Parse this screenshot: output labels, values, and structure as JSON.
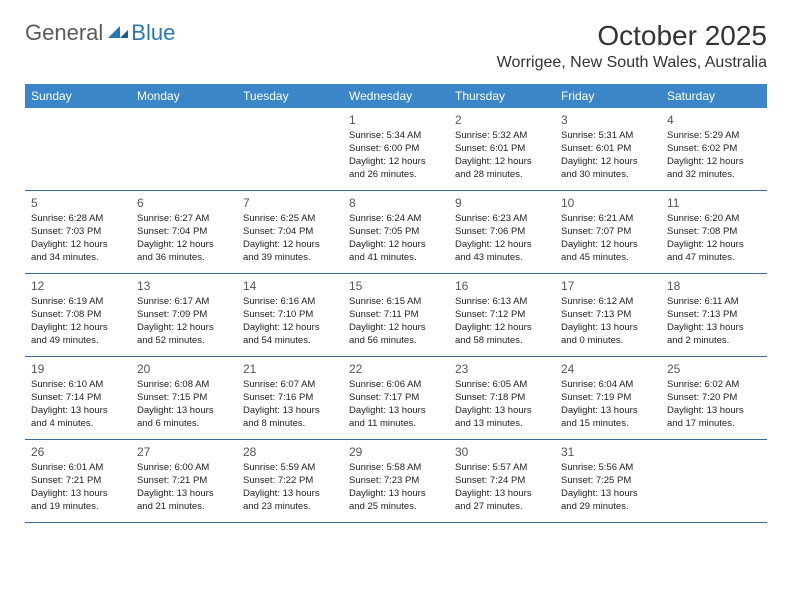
{
  "logo": {
    "text_general": "General",
    "text_blue": "Blue",
    "icon_color": "#2878b8"
  },
  "title": "October 2025",
  "location": "Worrigee, New South Wales, Australia",
  "header_bg": "#3a86c8",
  "header_text_color": "#ffffff",
  "divider_color": "#3a6a95",
  "day_names": [
    "Sunday",
    "Monday",
    "Tuesday",
    "Wednesday",
    "Thursday",
    "Friday",
    "Saturday"
  ],
  "weeks": [
    [
      {
        "num": "",
        "sunrise": "",
        "sunset": "",
        "daylight1": "",
        "daylight2": ""
      },
      {
        "num": "",
        "sunrise": "",
        "sunset": "",
        "daylight1": "",
        "daylight2": ""
      },
      {
        "num": "",
        "sunrise": "",
        "sunset": "",
        "daylight1": "",
        "daylight2": ""
      },
      {
        "num": "1",
        "sunrise": "Sunrise: 5:34 AM",
        "sunset": "Sunset: 6:00 PM",
        "daylight1": "Daylight: 12 hours",
        "daylight2": "and 26 minutes."
      },
      {
        "num": "2",
        "sunrise": "Sunrise: 5:32 AM",
        "sunset": "Sunset: 6:01 PM",
        "daylight1": "Daylight: 12 hours",
        "daylight2": "and 28 minutes."
      },
      {
        "num": "3",
        "sunrise": "Sunrise: 5:31 AM",
        "sunset": "Sunset: 6:01 PM",
        "daylight1": "Daylight: 12 hours",
        "daylight2": "and 30 minutes."
      },
      {
        "num": "4",
        "sunrise": "Sunrise: 5:29 AM",
        "sunset": "Sunset: 6:02 PM",
        "daylight1": "Daylight: 12 hours",
        "daylight2": "and 32 minutes."
      }
    ],
    [
      {
        "num": "5",
        "sunrise": "Sunrise: 6:28 AM",
        "sunset": "Sunset: 7:03 PM",
        "daylight1": "Daylight: 12 hours",
        "daylight2": "and 34 minutes."
      },
      {
        "num": "6",
        "sunrise": "Sunrise: 6:27 AM",
        "sunset": "Sunset: 7:04 PM",
        "daylight1": "Daylight: 12 hours",
        "daylight2": "and 36 minutes."
      },
      {
        "num": "7",
        "sunrise": "Sunrise: 6:25 AM",
        "sunset": "Sunset: 7:04 PM",
        "daylight1": "Daylight: 12 hours",
        "daylight2": "and 39 minutes."
      },
      {
        "num": "8",
        "sunrise": "Sunrise: 6:24 AM",
        "sunset": "Sunset: 7:05 PM",
        "daylight1": "Daylight: 12 hours",
        "daylight2": "and 41 minutes."
      },
      {
        "num": "9",
        "sunrise": "Sunrise: 6:23 AM",
        "sunset": "Sunset: 7:06 PM",
        "daylight1": "Daylight: 12 hours",
        "daylight2": "and 43 minutes."
      },
      {
        "num": "10",
        "sunrise": "Sunrise: 6:21 AM",
        "sunset": "Sunset: 7:07 PM",
        "daylight1": "Daylight: 12 hours",
        "daylight2": "and 45 minutes."
      },
      {
        "num": "11",
        "sunrise": "Sunrise: 6:20 AM",
        "sunset": "Sunset: 7:08 PM",
        "daylight1": "Daylight: 12 hours",
        "daylight2": "and 47 minutes."
      }
    ],
    [
      {
        "num": "12",
        "sunrise": "Sunrise: 6:19 AM",
        "sunset": "Sunset: 7:08 PM",
        "daylight1": "Daylight: 12 hours",
        "daylight2": "and 49 minutes."
      },
      {
        "num": "13",
        "sunrise": "Sunrise: 6:17 AM",
        "sunset": "Sunset: 7:09 PM",
        "daylight1": "Daylight: 12 hours",
        "daylight2": "and 52 minutes."
      },
      {
        "num": "14",
        "sunrise": "Sunrise: 6:16 AM",
        "sunset": "Sunset: 7:10 PM",
        "daylight1": "Daylight: 12 hours",
        "daylight2": "and 54 minutes."
      },
      {
        "num": "15",
        "sunrise": "Sunrise: 6:15 AM",
        "sunset": "Sunset: 7:11 PM",
        "daylight1": "Daylight: 12 hours",
        "daylight2": "and 56 minutes."
      },
      {
        "num": "16",
        "sunrise": "Sunrise: 6:13 AM",
        "sunset": "Sunset: 7:12 PM",
        "daylight1": "Daylight: 12 hours",
        "daylight2": "and 58 minutes."
      },
      {
        "num": "17",
        "sunrise": "Sunrise: 6:12 AM",
        "sunset": "Sunset: 7:13 PM",
        "daylight1": "Daylight: 13 hours",
        "daylight2": "and 0 minutes."
      },
      {
        "num": "18",
        "sunrise": "Sunrise: 6:11 AM",
        "sunset": "Sunset: 7:13 PM",
        "daylight1": "Daylight: 13 hours",
        "daylight2": "and 2 minutes."
      }
    ],
    [
      {
        "num": "19",
        "sunrise": "Sunrise: 6:10 AM",
        "sunset": "Sunset: 7:14 PM",
        "daylight1": "Daylight: 13 hours",
        "daylight2": "and 4 minutes."
      },
      {
        "num": "20",
        "sunrise": "Sunrise: 6:08 AM",
        "sunset": "Sunset: 7:15 PM",
        "daylight1": "Daylight: 13 hours",
        "daylight2": "and 6 minutes."
      },
      {
        "num": "21",
        "sunrise": "Sunrise: 6:07 AM",
        "sunset": "Sunset: 7:16 PM",
        "daylight1": "Daylight: 13 hours",
        "daylight2": "and 8 minutes."
      },
      {
        "num": "22",
        "sunrise": "Sunrise: 6:06 AM",
        "sunset": "Sunset: 7:17 PM",
        "daylight1": "Daylight: 13 hours",
        "daylight2": "and 11 minutes."
      },
      {
        "num": "23",
        "sunrise": "Sunrise: 6:05 AM",
        "sunset": "Sunset: 7:18 PM",
        "daylight1": "Daylight: 13 hours",
        "daylight2": "and 13 minutes."
      },
      {
        "num": "24",
        "sunrise": "Sunrise: 6:04 AM",
        "sunset": "Sunset: 7:19 PM",
        "daylight1": "Daylight: 13 hours",
        "daylight2": "and 15 minutes."
      },
      {
        "num": "25",
        "sunrise": "Sunrise: 6:02 AM",
        "sunset": "Sunset: 7:20 PM",
        "daylight1": "Daylight: 13 hours",
        "daylight2": "and 17 minutes."
      }
    ],
    [
      {
        "num": "26",
        "sunrise": "Sunrise: 6:01 AM",
        "sunset": "Sunset: 7:21 PM",
        "daylight1": "Daylight: 13 hours",
        "daylight2": "and 19 minutes."
      },
      {
        "num": "27",
        "sunrise": "Sunrise: 6:00 AM",
        "sunset": "Sunset: 7:21 PM",
        "daylight1": "Daylight: 13 hours",
        "daylight2": "and 21 minutes."
      },
      {
        "num": "28",
        "sunrise": "Sunrise: 5:59 AM",
        "sunset": "Sunset: 7:22 PM",
        "daylight1": "Daylight: 13 hours",
        "daylight2": "and 23 minutes."
      },
      {
        "num": "29",
        "sunrise": "Sunrise: 5:58 AM",
        "sunset": "Sunset: 7:23 PM",
        "daylight1": "Daylight: 13 hours",
        "daylight2": "and 25 minutes."
      },
      {
        "num": "30",
        "sunrise": "Sunrise: 5:57 AM",
        "sunset": "Sunset: 7:24 PM",
        "daylight1": "Daylight: 13 hours",
        "daylight2": "and 27 minutes."
      },
      {
        "num": "31",
        "sunrise": "Sunrise: 5:56 AM",
        "sunset": "Sunset: 7:25 PM",
        "daylight1": "Daylight: 13 hours",
        "daylight2": "and 29 minutes."
      },
      {
        "num": "",
        "sunrise": "",
        "sunset": "",
        "daylight1": "",
        "daylight2": ""
      }
    ]
  ]
}
